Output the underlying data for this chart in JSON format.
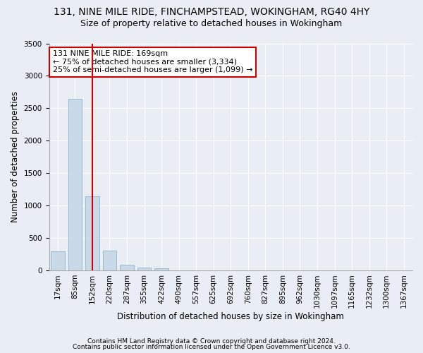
{
  "title1": "131, NINE MILE RIDE, FINCHAMPSTEAD, WOKINGHAM, RG40 4HY",
  "title2": "Size of property relative to detached houses in Wokingham",
  "xlabel": "Distribution of detached houses by size in Wokingham",
  "ylabel": "Number of detached properties",
  "bar_color": "#c9d9e8",
  "bar_edge_color": "#7aaac8",
  "categories": [
    "17sqm",
    "85sqm",
    "152sqm",
    "220sqm",
    "287sqm",
    "355sqm",
    "422sqm",
    "490sqm",
    "557sqm",
    "625sqm",
    "692sqm",
    "760sqm",
    "827sqm",
    "895sqm",
    "962sqm",
    "1030sqm",
    "1097sqm",
    "1165sqm",
    "1232sqm",
    "1300sqm",
    "1367sqm"
  ],
  "values": [
    295,
    2640,
    1145,
    300,
    88,
    42,
    30,
    0,
    0,
    0,
    0,
    0,
    0,
    0,
    0,
    0,
    0,
    0,
    0,
    0,
    0
  ],
  "ylim": [
    0,
    3500
  ],
  "yticks": [
    0,
    500,
    1000,
    1500,
    2000,
    2500,
    3000,
    3500
  ],
  "vline_x": 2,
  "vline_color": "#cc0000",
  "annotation_text": "131 NINE MILE RIDE: 169sqm\n← 75% of detached houses are smaller (3,334)\n25% of semi-detached houses are larger (1,099) →",
  "annotation_box_color": "#ffffff",
  "annotation_box_edge": "#cc0000",
  "footnote1": "Contains HM Land Registry data © Crown copyright and database right 2024.",
  "footnote2": "Contains public sector information licensed under the Open Government Licence v3.0.",
  "background_color": "#e8eef4",
  "grid_color": "#ffffff",
  "title1_fontsize": 10,
  "title2_fontsize": 9,
  "tick_fontsize": 7.5,
  "ylabel_fontsize": 8.5,
  "xlabel_fontsize": 8.5,
  "footnote_fontsize": 6.5,
  "annotation_fontsize": 8
}
